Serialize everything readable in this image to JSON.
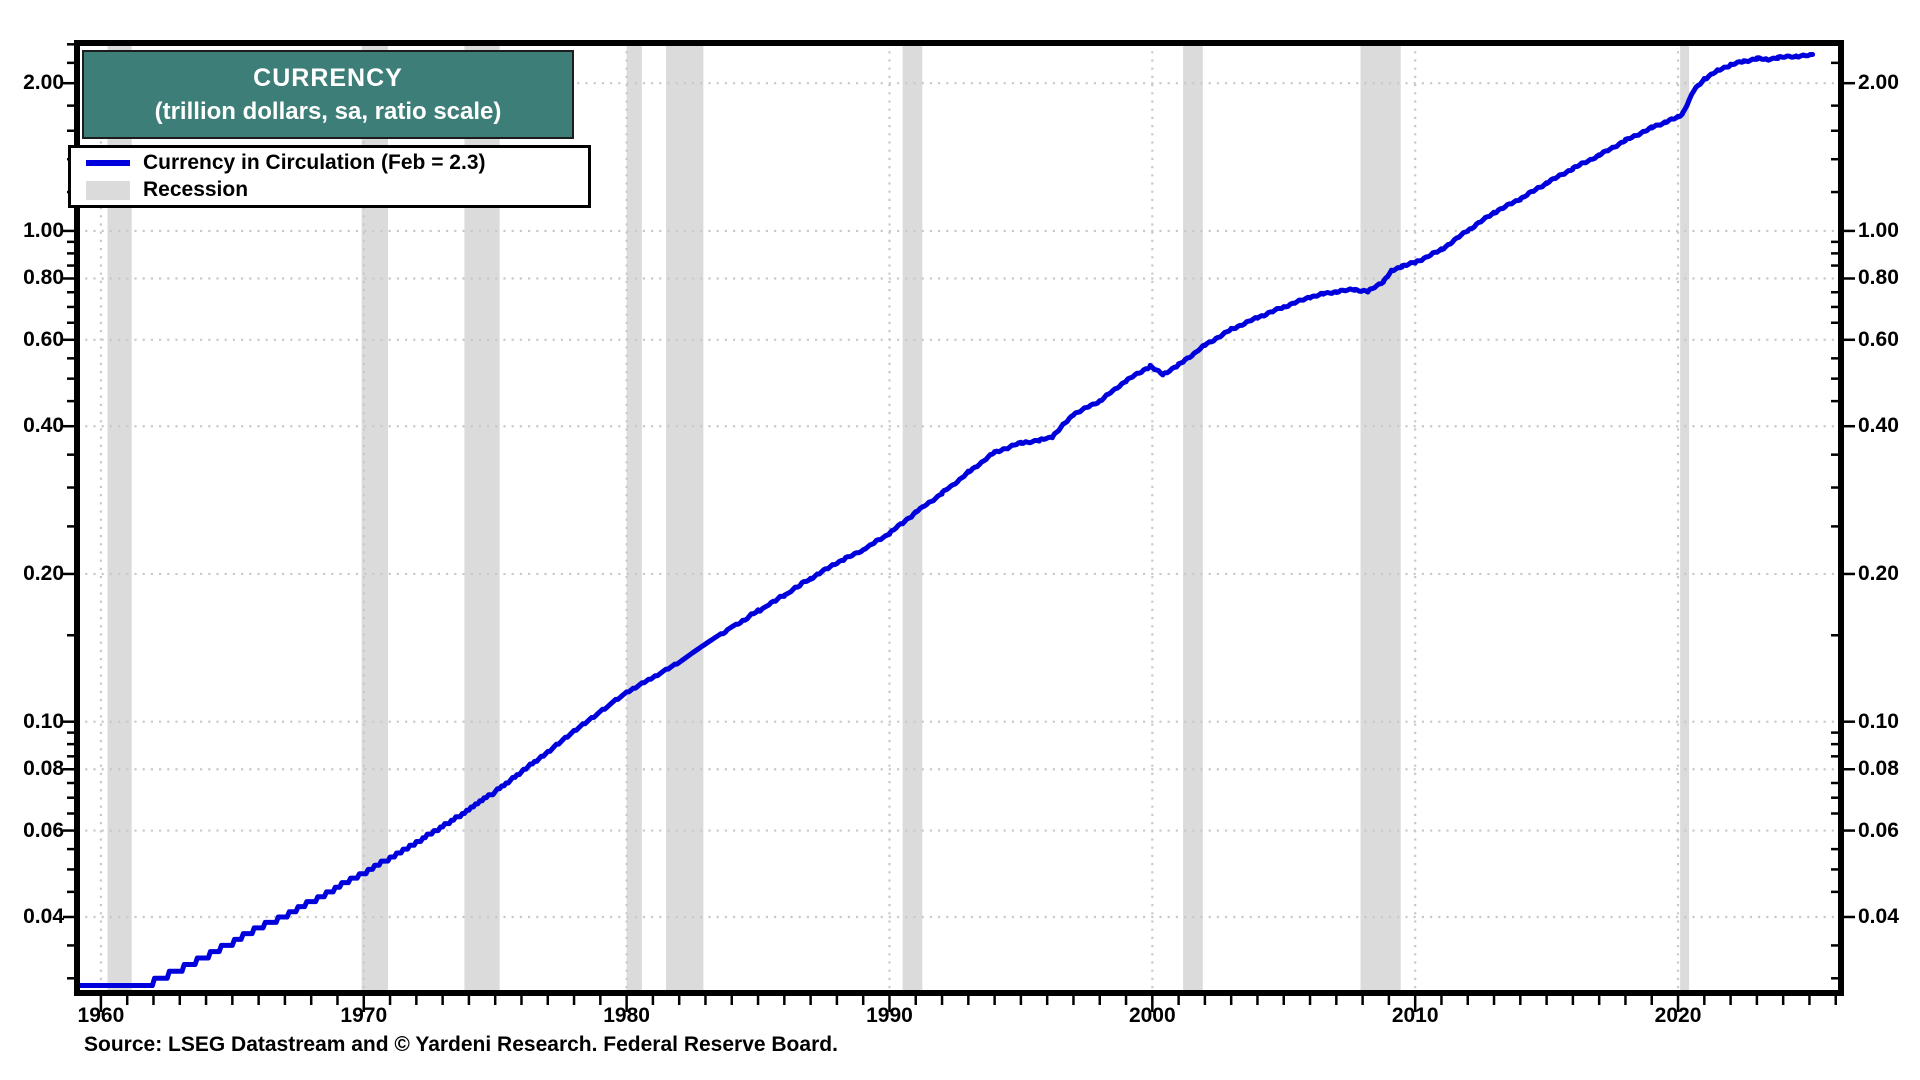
{
  "chart_data": {
    "type": "line",
    "title": "CURRENCY",
    "subtitle": "(trillion dollars, sa, ratio scale)",
    "legend": [
      {
        "label": "Currency in Circulation (Feb = 2.3)",
        "color": "#0000dd",
        "style": "line"
      },
      {
        "label": "Recession",
        "color": "#dbdbdb",
        "style": "band"
      }
    ],
    "x_axis": {
      "range": [
        1959.09,
        2026.2
      ],
      "major_ticks": [
        1960,
        1970,
        1980,
        1990,
        2000,
        2010,
        2020
      ],
      "tick_labels": [
        "1960",
        "1970",
        "1980",
        "1990",
        "2000",
        "2010",
        "2020"
      ],
      "minor_tick_step_years": 1
    },
    "y_axis": {
      "scale": "log",
      "range": [
        0.028,
        2.415
      ],
      "major_ticks": [
        2.0,
        1.0,
        0.8,
        0.6,
        0.4,
        0.2,
        0.1,
        0.08,
        0.06,
        0.04
      ],
      "tick_labels": [
        "2.00",
        "1.00",
        "0.80",
        "0.60",
        "0.40",
        "0.20",
        "0.10",
        "0.08",
        "0.06",
        "0.04"
      ],
      "minor_ticks": [
        0.03,
        0.035,
        0.045,
        0.05,
        0.055,
        0.065,
        0.07,
        0.075,
        0.085,
        0.09,
        0.095,
        0.15,
        0.25,
        0.3,
        0.35,
        0.45,
        0.5,
        0.55,
        0.65,
        0.7,
        0.75,
        0.85,
        0.9,
        0.95,
        1.2,
        1.4,
        1.6,
        1.8,
        2.2,
        2.4
      ],
      "sides": "both"
    },
    "grid": {
      "horizontal_at": [
        2.0,
        1.0,
        0.8,
        0.6,
        0.4,
        0.2,
        0.1,
        0.08,
        0.06,
        0.04
      ],
      "vertical_at": [
        1960,
        1970,
        1980,
        1990,
        2000,
        2010,
        2020
      ]
    },
    "recessions": [
      [
        1960.25,
        1961.17
      ],
      [
        1969.92,
        1970.92
      ],
      [
        1973.83,
        1975.17
      ],
      [
        1980.0,
        1980.58
      ],
      [
        1981.5,
        1982.92
      ],
      [
        1990.5,
        1991.25
      ],
      [
        2001.17,
        2001.92
      ],
      [
        2007.92,
        2009.45
      ],
      [
        2020.08,
        2020.42
      ]
    ],
    "series": [
      {
        "name": "Currency in Circulation (Feb = 2.3)",
        "color": "#0000dd",
        "last_point": {
          "period": "Feb",
          "value": 2.3
        },
        "points": [
          [
            1959.0,
            0.029
          ],
          [
            1961.8,
            0.029
          ],
          [
            1962.2,
            0.03
          ],
          [
            1963.0,
            0.0312
          ],
          [
            1964.0,
            0.0332
          ],
          [
            1965.0,
            0.0355
          ],
          [
            1966.0,
            0.038
          ],
          [
            1967.0,
            0.0402
          ],
          [
            1968.0,
            0.043
          ],
          [
            1969.0,
            0.046
          ],
          [
            1970.0,
            0.0492
          ],
          [
            1971.0,
            0.0527
          ],
          [
            1972.0,
            0.0567
          ],
          [
            1973.0,
            0.0612
          ],
          [
            1974.0,
            0.0662
          ],
          [
            1975.0,
            0.072
          ],
          [
            1976.0,
            0.079
          ],
          [
            1977.0,
            0.0868
          ],
          [
            1978.0,
            0.0955
          ],
          [
            1979.0,
            0.1048
          ],
          [
            1980.0,
            0.1148
          ],
          [
            1981.0,
            0.123
          ],
          [
            1982.0,
            0.1322
          ],
          [
            1983.0,
            0.144
          ],
          [
            1984.0,
            0.1558
          ],
          [
            1985.0,
            0.168
          ],
          [
            1986.0,
            0.181
          ],
          [
            1987.0,
            0.1958
          ],
          [
            1988.0,
            0.2108
          ],
          [
            1989.0,
            0.224
          ],
          [
            1990.0,
            0.242
          ],
          [
            1991.0,
            0.267
          ],
          [
            1992.0,
            0.292
          ],
          [
            1993.0,
            0.322
          ],
          [
            1994.0,
            0.354
          ],
          [
            1995.0,
            0.37
          ],
          [
            1995.7,
            0.374
          ],
          [
            1996.2,
            0.381
          ],
          [
            1997.0,
            0.423
          ],
          [
            1998.0,
            0.45
          ],
          [
            1999.0,
            0.495
          ],
          [
            1999.92,
            0.53
          ],
          [
            2000.4,
            0.51
          ],
          [
            2001.0,
            0.533
          ],
          [
            2002.0,
            0.585
          ],
          [
            2003.0,
            0.63
          ],
          [
            2004.0,
            0.666
          ],
          [
            2005.0,
            0.7
          ],
          [
            2006.0,
            0.733
          ],
          [
            2006.5,
            0.744
          ],
          [
            2007.0,
            0.752
          ],
          [
            2007.7,
            0.76
          ],
          [
            2008.2,
            0.752
          ],
          [
            2008.8,
            0.79
          ],
          [
            2009.1,
            0.828
          ],
          [
            2009.5,
            0.848
          ],
          [
            2010.0,
            0.862
          ],
          [
            2011.0,
            0.916
          ],
          [
            2012.0,
            1.002
          ],
          [
            2013.0,
            1.09
          ],
          [
            2014.0,
            1.162
          ],
          [
            2015.0,
            1.252
          ],
          [
            2016.0,
            1.34
          ],
          [
            2017.0,
            1.426
          ],
          [
            2018.0,
            1.529
          ],
          [
            2019.0,
            1.623
          ],
          [
            2019.5,
            1.665
          ],
          [
            2020.0,
            1.705
          ],
          [
            2020.17,
            1.735
          ],
          [
            2020.6,
            1.93
          ],
          [
            2021.0,
            2.04
          ],
          [
            2021.5,
            2.12
          ],
          [
            2022.0,
            2.18
          ],
          [
            2022.5,
            2.215
          ],
          [
            2023.0,
            2.245
          ],
          [
            2023.35,
            2.235
          ],
          [
            2023.8,
            2.255
          ],
          [
            2024.5,
            2.27
          ],
          [
            2025.12,
            2.28
          ]
        ]
      }
    ]
  },
  "source_note": "Source: LSEG Datastream and © Yardeni Research. Federal Reserve Board.",
  "colors": {
    "line_blue": "#0000dd",
    "recession_gray": "#dbdbdb",
    "grid_gray": "#c9c9c9",
    "title_bg_teal": "#3d7f78",
    "title_text": "#ffffff",
    "axis_black": "#000000"
  }
}
